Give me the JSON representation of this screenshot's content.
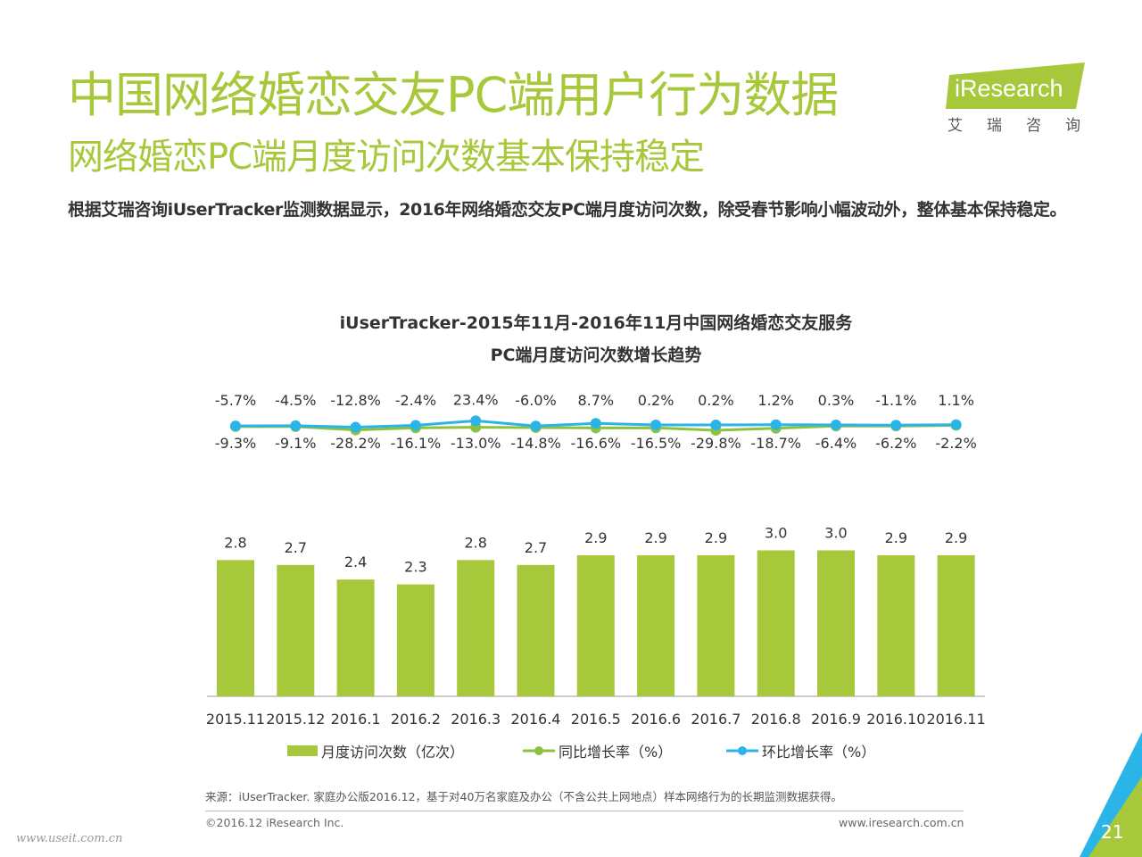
{
  "header": {
    "title": "中国网络婚恋交友PC端用户行为数据",
    "subtitle": "网络婚恋PC端月度访问次数基本保持稳定",
    "intro": "根据艾瑞咨询iUserTracker监测数据显示，2016年网络婚恋交友PC端月度访问次数，除受春节影响小幅波动外，整体基本保持稳定。"
  },
  "logo": {
    "brand": "iResearch",
    "cn": "艾瑞咨询"
  },
  "chart_data": {
    "type": "bar",
    "title_line1": "iUserTracker-2015年11月-2016年11月中国网络婚恋交友服务",
    "title_line2": "PC端月度访问次数增长趋势",
    "categories": [
      "2015.11",
      "2015.12",
      "2016.1",
      "2016.2",
      "2016.3",
      "2016.4",
      "2016.5",
      "2016.6",
      "2016.7",
      "2016.8",
      "2016.9",
      "2016.10",
      "2016.11"
    ],
    "series": [
      {
        "name": "月度访问次数（亿次）",
        "kind": "bar",
        "values": [
          2.8,
          2.7,
          2.4,
          2.3,
          2.8,
          2.7,
          2.9,
          2.9,
          2.9,
          3.0,
          3.0,
          2.9,
          2.9
        ]
      },
      {
        "name": "同比增长率（%）",
        "kind": "line",
        "values": [
          -9.3,
          -9.1,
          -28.2,
          -16.1,
          -13.0,
          -14.8,
          -16.6,
          -16.5,
          -29.8,
          -18.7,
          -6.4,
          -6.2,
          -2.2
        ]
      },
      {
        "name": "环比增长率（%）",
        "kind": "line",
        "values": [
          -5.7,
          -4.5,
          -12.8,
          -2.4,
          23.4,
          -6.0,
          8.7,
          0.2,
          0.2,
          1.2,
          0.3,
          -1.1,
          1.1
        ]
      }
    ],
    "legend_position": "bottom",
    "colors": {
      "bar": "#a7c83a",
      "yoy": "#8dc23f",
      "mom": "#2ab4e8"
    }
  },
  "footer": {
    "source": "来源：iUserTracker. 家庭办公版2016.12，基于对40万名家庭及办公（不含公共上网地点）样本网络行为的长期监测数据获得。",
    "copyright": "©2016.12 iResearch Inc.",
    "website": "www.iresearch.com.cn",
    "page": "21",
    "watermark": "www.useit.com.cn"
  }
}
